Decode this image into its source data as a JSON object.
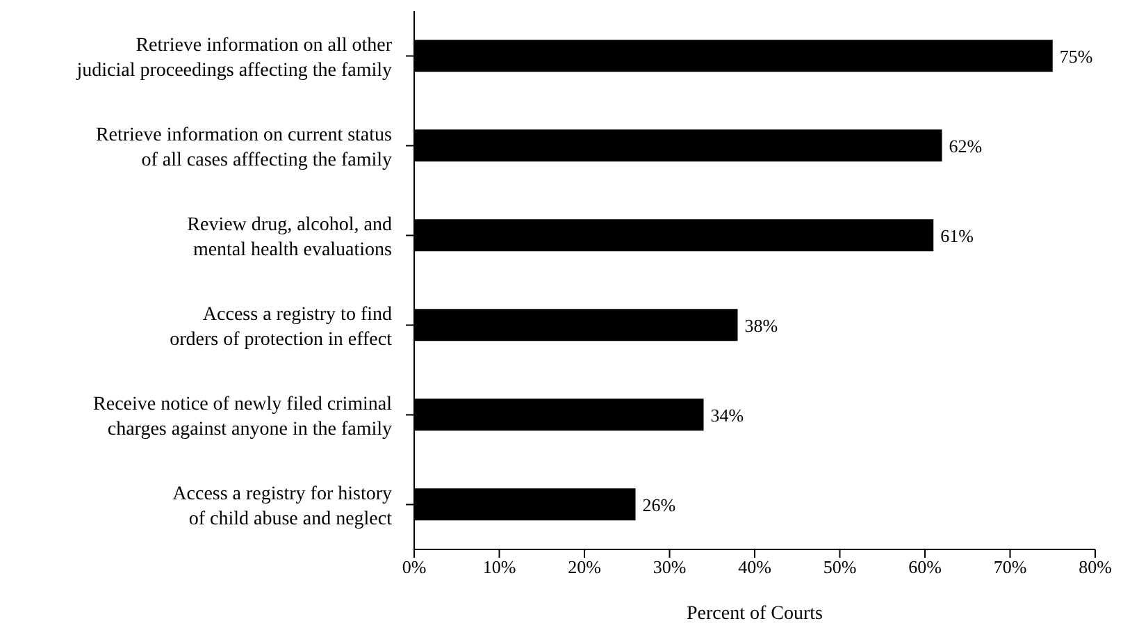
{
  "chart_data": {
    "type": "bar",
    "orientation": "horizontal",
    "xlabel": "Percent of Courts",
    "categories": [
      "Retrieve information on all other judicial proceedings affecting the family",
      "Retrieve information on current status of all cases afffecting the family",
      "Review drug, alcohol, and mental health evaluations",
      "Access a registry to find orders of protection in effect",
      "Receive notice of newly filed criminal charges against anyone in the family",
      "Access a registry for history of child abuse and neglect"
    ],
    "values": [
      75,
      62,
      61,
      38,
      34,
      26
    ],
    "color": "#000000",
    "value_labels": [
      "75%",
      "62%",
      "61%",
      "38%",
      "34%",
      "26%"
    ],
    "xlim": [
      0,
      80
    ],
    "xticks": [
      {
        "value": 0,
        "label": "0%"
      },
      {
        "value": 10,
        "label": "10%"
      },
      {
        "value": 20,
        "label": "20%"
      },
      {
        "value": 30,
        "label": "30%"
      },
      {
        "value": 40,
        "label": "40%"
      },
      {
        "value": 50,
        "label": "50%"
      },
      {
        "value": 60,
        "label": "60%"
      },
      {
        "value": 70,
        "label": "70%"
      },
      {
        "value": 80,
        "label": "80%"
      }
    ],
    "grid": false,
    "legend": false
  }
}
